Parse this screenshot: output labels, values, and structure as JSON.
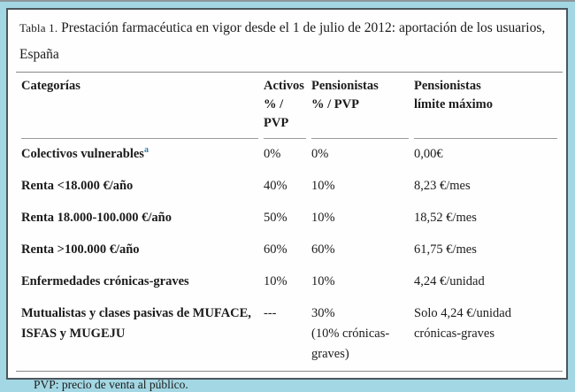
{
  "page": {
    "background_color": "#a3d7e3",
    "panel_border_color": "#4b565c",
    "rule_color": "#878787",
    "accent_color": "#2e7eb3"
  },
  "table": {
    "title_label": "Tabla 1.",
    "title_text": "Prestación farmacéutica en vigor desde el 1 de julio de 2012: aportación de los usuarios, España",
    "columns": [
      {
        "label": "Categorías",
        "sub": ""
      },
      {
        "label": "Activos",
        "sub": "% / PVP"
      },
      {
        "label": "Pensionistas",
        "sub": "% / PVP"
      },
      {
        "label": "Pensionistas",
        "sub": "límite máximo"
      }
    ],
    "rows": [
      {
        "category": "Colectivos vulnerables",
        "footnote_marker": "a",
        "activos": "0%",
        "pensionistas": "0%",
        "limite": "0,00€"
      },
      {
        "category": "Renta <18.000 €/año",
        "footnote_marker": "",
        "activos": "40%",
        "pensionistas": "10%",
        "limite": "8,23 €/mes"
      },
      {
        "category": "Renta 18.000-100.000 €/año",
        "footnote_marker": "",
        "activos": "50%",
        "pensionistas": "10%",
        "limite": "18,52 €/mes"
      },
      {
        "category": "Renta >100.000 €/año",
        "footnote_marker": "",
        "activos": "60%",
        "pensionistas": "60%",
        "limite": "61,75 €/mes"
      },
      {
        "category": "Enfermedades crónicas-graves",
        "footnote_marker": "",
        "activos": "10%",
        "pensionistas": "10%",
        "limite": "4,24 €/unidad"
      },
      {
        "category": "Mutualistas y clases pasivas de MUFACE,\nISFAS y MUGEJU",
        "footnote_marker": "",
        "activos": "---",
        "pensionistas": "30%\n(10% crónicas-\ngraves)",
        "limite": "Solo 4,24 €/unidad\ncrónicas-graves"
      }
    ],
    "footnote": "PVP: precio de venta al público."
  }
}
